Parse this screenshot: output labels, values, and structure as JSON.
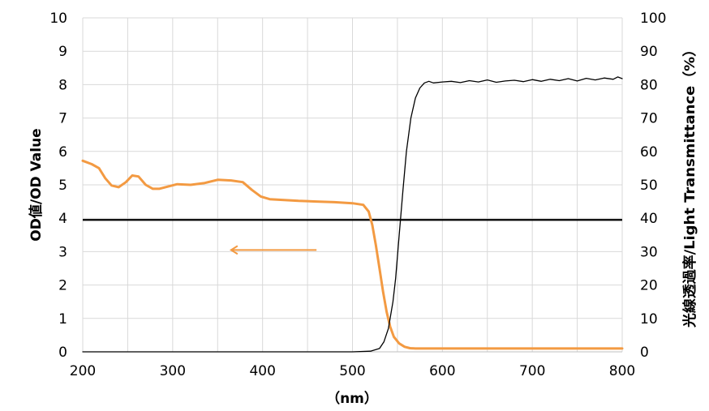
{
  "chart_data": {
    "type": "line",
    "xlabel": "（nm）",
    "ylabel_left": "OD値/OD Value",
    "ylabel_right": "光線透過率/Light Transmittance（%）",
    "xlim": [
      200,
      800
    ],
    "ylim_left": [
      0,
      10
    ],
    "ylim_right": [
      0,
      100
    ],
    "x_ticks": [
      200,
      300,
      400,
      500,
      600,
      700,
      800
    ],
    "y_ticks_left": [
      0,
      1,
      2,
      3,
      4,
      5,
      6,
      7,
      8,
      9,
      10
    ],
    "y_ticks_right": [
      0,
      10,
      20,
      30,
      40,
      50,
      60,
      70,
      80,
      90,
      100
    ],
    "grid": true,
    "reference_line": {
      "axis": "left",
      "value": 3.95,
      "color": "#000000"
    },
    "annotations": [
      {
        "type": "arrow",
        "from": [
          460,
          3.05
        ],
        "to": [
          365,
          3.05
        ],
        "color": "#f39a42",
        "points_to": "left-axis"
      }
    ],
    "series": [
      {
        "axis": "left",
        "color": "#f39a42",
        "x": [
          200,
          210,
          218,
          225,
          232,
          240,
          248,
          255,
          262,
          270,
          278,
          285,
          295,
          305,
          320,
          335,
          350,
          365,
          378,
          388,
          398,
          408,
          420,
          440,
          460,
          480,
          500,
          512,
          518,
          522,
          526,
          530,
          534,
          538,
          542,
          546,
          552,
          558,
          564,
          570,
          580,
          590,
          620,
          660,
          700,
          740,
          780,
          800
        ],
        "y": [
          5.72,
          5.62,
          5.5,
          5.2,
          4.98,
          4.93,
          5.08,
          5.28,
          5.25,
          5.0,
          4.88,
          4.88,
          4.95,
          5.02,
          5.0,
          5.05,
          5.15,
          5.13,
          5.08,
          4.85,
          4.65,
          4.57,
          4.55,
          4.52,
          4.5,
          4.48,
          4.45,
          4.4,
          4.2,
          3.8,
          3.2,
          2.5,
          1.8,
          1.2,
          0.75,
          0.45,
          0.25,
          0.15,
          0.11,
          0.1,
          0.1,
          0.1,
          0.1,
          0.1,
          0.1,
          0.1,
          0.1,
          0.1
        ]
      },
      {
        "axis": "right",
        "color": "#000000",
        "x": [
          200,
          500,
          520,
          530,
          535,
          540,
          545,
          548,
          552,
          556,
          560,
          565,
          570,
          575,
          580,
          585,
          590,
          600,
          610,
          620,
          630,
          640,
          650,
          660,
          670,
          680,
          690,
          700,
          710,
          720,
          730,
          740,
          750,
          760,
          770,
          780,
          790,
          795,
          800
        ],
        "y": [
          0,
          0,
          0.2,
          1,
          3,
          7,
          15,
          22,
          35,
          48,
          60,
          70,
          76,
          79,
          80.5,
          81,
          80.5,
          80.8,
          81,
          80.6,
          81.2,
          80.8,
          81.4,
          80.7,
          81.1,
          81.3,
          80.9,
          81.5,
          81.0,
          81.6,
          81.2,
          81.8,
          81.1,
          81.9,
          81.4,
          82.0,
          81.6,
          82.3,
          81.8
        ]
      }
    ]
  }
}
